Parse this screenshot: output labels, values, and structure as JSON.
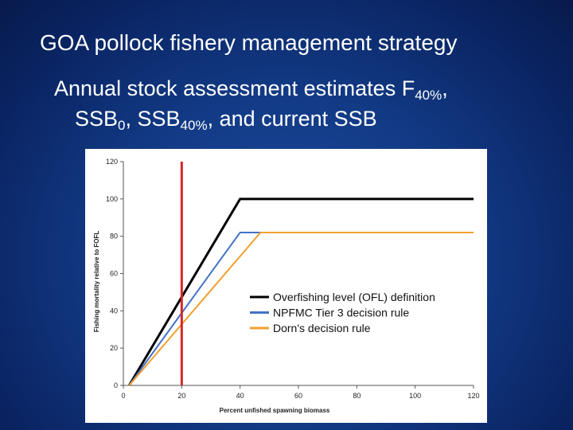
{
  "slide": {
    "title": "GOA pollock fishery management strategy",
    "subtitle_line1_prefix": "Annual stock assessment estimates F",
    "subtitle_line1_sub": "40%",
    "subtitle_line1_suffix": ",",
    "subtitle_line2_a": "SSB",
    "subtitle_line2_sub_a": "0",
    "subtitle_line2_b": ", SSB",
    "subtitle_line2_sub_b": "40%",
    "subtitle_line2_c": ", and current SSB"
  },
  "chart_data": {
    "type": "line",
    "title": "",
    "xlabel": "Percent unfished spawning biomass",
    "ylabel": "Fishing mortality relative to FOFL",
    "xlim": [
      0,
      120
    ],
    "ylim": [
      0,
      120
    ],
    "xticks": [
      0,
      20,
      40,
      60,
      80,
      100,
      120
    ],
    "yticks": [
      0,
      20,
      40,
      60,
      80,
      100,
      120
    ],
    "grid": false,
    "legend": "center-right",
    "series": [
      {
        "name": "Overfishing level (OFL) definition",
        "color": "#000000",
        "points": [
          [
            2,
            0
          ],
          [
            40,
            100
          ],
          [
            120,
            100
          ]
        ]
      },
      {
        "name": "NPFMC Tier 3 decision rule",
        "color": "#4472c4",
        "points": [
          [
            2,
            0
          ],
          [
            40,
            82
          ],
          [
            47,
            82
          ]
        ]
      },
      {
        "name": "Dorn's decision rule",
        "color": "#f0a030",
        "points": [
          [
            2,
            0
          ],
          [
            47,
            82
          ],
          [
            120,
            82
          ]
        ]
      }
    ],
    "reference_line": {
      "x": 20,
      "color": "#d62728"
    }
  }
}
